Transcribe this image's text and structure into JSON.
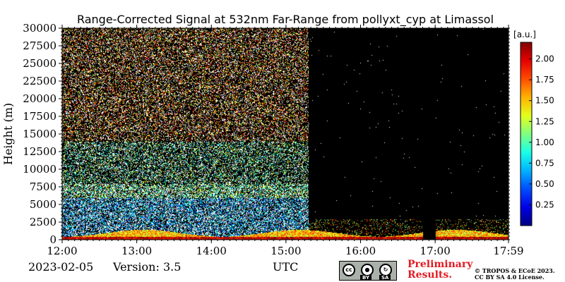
{
  "chart_data": {
    "type": "heatmap",
    "title": "Range-Corrected Signal at 532nm Far-Range from pollyxt_cyp at Limassol",
    "ylabel": "Height (m)",
    "xlabel": "UTC",
    "x_ticks": [
      "12:00",
      "13:00",
      "14:00",
      "15:00",
      "16:00",
      "17:00",
      "17:59"
    ],
    "x_tick_hours": [
      12.0,
      13.0,
      14.0,
      15.0,
      16.0,
      17.0,
      17.983
    ],
    "xlim_hours": [
      12.0,
      17.983
    ],
    "y_ticks": [
      0,
      2500,
      5000,
      7500,
      10000,
      12500,
      15000,
      17500,
      20000,
      22500,
      25000,
      27500,
      30000
    ],
    "ylim": [
      0,
      30000
    ],
    "colorbar": {
      "unit": "[a.u.]",
      "ticks": [
        0.25,
        0.5,
        0.75,
        1.0,
        1.25,
        1.5,
        1.75,
        2.0
      ],
      "tick_labels": [
        "0.25",
        "0.50",
        "0.75",
        "1.00",
        "1.25",
        "1.50",
        "1.75",
        "2.00"
      ],
      "range": [
        0.0,
        2.2
      ],
      "colormap": "jet"
    },
    "description_features": {
      "aerosol_layer_top_m": 1200,
      "clear_sky_start_hour": 15.3,
      "data_gap_hours": [
        16.83,
        17.0
      ]
    }
  },
  "footer": {
    "date": "2023-02-05",
    "version": "Version: 3.5",
    "utc_label": "UTC",
    "preliminary_line1": "Preliminary",
    "preliminary_line2": "Results.",
    "copyright_line1": "© TROPOS & ECoE 2023.",
    "copyright_line2": "CC BY SA 4.0 License.",
    "badge_by": "BY",
    "badge_sa": "SA"
  }
}
